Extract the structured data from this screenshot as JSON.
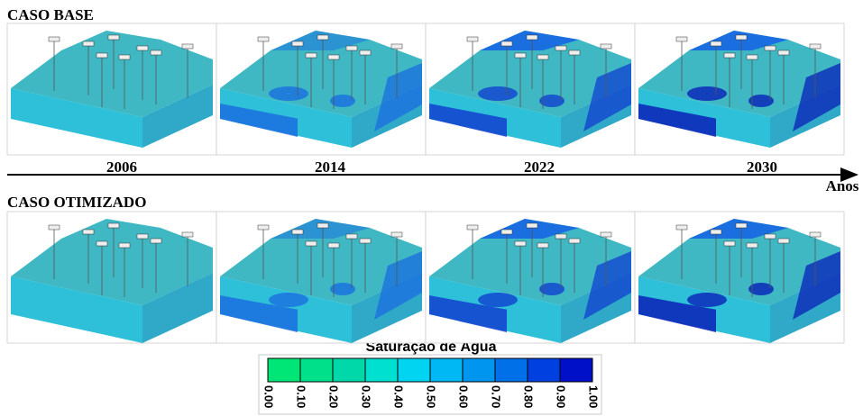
{
  "rows": [
    {
      "title": "CASO BASE"
    },
    {
      "title": "CASO OTIMIZADO"
    }
  ],
  "timeline": {
    "years": [
      "2006",
      "2014",
      "2022",
      "2030"
    ],
    "axis_label": "Anos"
  },
  "colorbar": {
    "title": "Saturação de Água",
    "ticks": [
      "0.00",
      "0.10",
      "0.20",
      "0.30",
      "0.40",
      "0.50",
      "0.60",
      "0.70",
      "0.80",
      "0.90",
      "1.00"
    ],
    "colors": [
      "#00e676",
      "#00e08a",
      "#00d8aa",
      "#00e0d0",
      "#00d4f0",
      "#00b8f4",
      "#0096f0",
      "#0070e8",
      "#0040e0",
      "#0010c8"
    ]
  }
}
